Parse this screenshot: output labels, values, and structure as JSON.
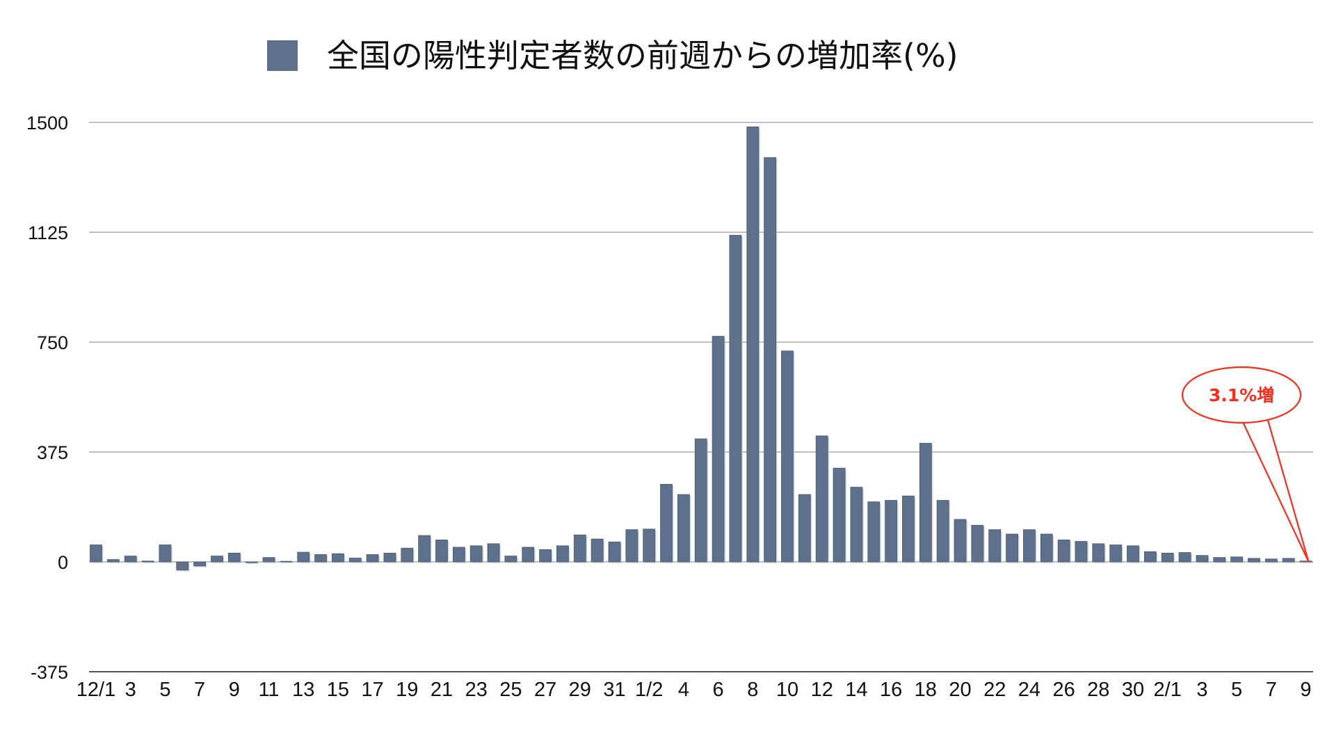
{
  "chart_data": {
    "type": "bar",
    "title": "全国の陽性判定者数の前週からの増加率(%)",
    "legend": {
      "placement": "top-center",
      "entries": [
        "全国の陽性判定者数の前週からの増加率(%)"
      ]
    },
    "series": [
      {
        "name": "全国の陽性判定者数の前週からの増加率(%)",
        "color": "#5d708c",
        "values": [
          58,
          8,
          20,
          3,
          58,
          -28,
          -14,
          20,
          30,
          -3,
          15,
          2,
          33,
          25,
          28,
          13,
          25,
          30,
          47,
          90,
          75,
          50,
          55,
          62,
          20,
          50,
          42,
          55,
          92,
          78,
          68,
          110,
          112,
          265,
          230,
          420,
          770,
          1115,
          1485,
          1380,
          720,
          230,
          430,
          320,
          255,
          205,
          210,
          225,
          405,
          210,
          145,
          125,
          110,
          95,
          110,
          95,
          75,
          70,
          62,
          58,
          55,
          35,
          30,
          32,
          22,
          15,
          17,
          12,
          10,
          12,
          3.1
        ]
      }
    ],
    "y_axis": {
      "ylim": [
        -375,
        1500
      ],
      "ticks": [
        "-375",
        "0",
        "375",
        "750",
        "1125",
        "1500"
      ],
      "tick_values": [
        -375,
        0,
        375,
        750,
        1125,
        1500
      ],
      "grid": true
    },
    "x_axis": {
      "tick_labels": [
        "12/1",
        "3",
        "5",
        "7",
        "9",
        "11",
        "13",
        "15",
        "17",
        "19",
        "21",
        "23",
        "25",
        "27",
        "29",
        "31",
        "1/2",
        "4",
        "6",
        "8",
        "10",
        "12",
        "14",
        "16",
        "18",
        "20",
        "22",
        "24",
        "26",
        "28",
        "30",
        "2/1",
        "3",
        "5",
        "7",
        "9"
      ],
      "tick_indices": [
        0,
        2,
        4,
        6,
        8,
        10,
        12,
        14,
        16,
        18,
        20,
        22,
        24,
        26,
        28,
        30,
        32,
        34,
        36,
        38,
        40,
        42,
        44,
        46,
        48,
        50,
        52,
        54,
        56,
        58,
        60,
        62,
        64,
        66,
        68,
        70
      ]
    },
    "annotations": [
      {
        "text": "3.1%増",
        "target_index": 70,
        "color": "#ff2a1a"
      }
    ]
  }
}
